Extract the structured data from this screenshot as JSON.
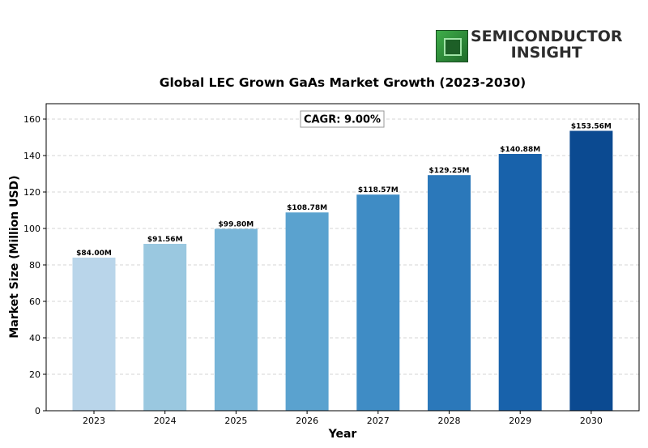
{
  "logo": {
    "line1": "SEMICONDUCTOR",
    "line2": "INSIGHT"
  },
  "chart_data": {
    "type": "bar",
    "title": "Global LEC Grown GaAs Market Growth (2023-2030)",
    "xlabel": "Year",
    "ylabel": "Market Size (Million USD)",
    "categories": [
      "2023",
      "2024",
      "2025",
      "2026",
      "2027",
      "2028",
      "2029",
      "2030"
    ],
    "values": [
      84.0,
      91.56,
      99.8,
      108.78,
      118.57,
      129.25,
      140.88,
      153.56
    ],
    "data_labels": [
      "$84.00M",
      "$91.56M",
      "$99.80M",
      "$108.78M",
      "$118.57M",
      "$129.25M",
      "$140.88M",
      "$153.56M"
    ],
    "bar_colors": [
      "#b9d5ea",
      "#9ac8e0",
      "#78b5d8",
      "#5aa2cf",
      "#3f8cc5",
      "#2b78ba",
      "#1862ab",
      "#0b4a91"
    ],
    "ylim": [
      0,
      168
    ],
    "yticks": [
      0,
      20,
      40,
      60,
      80,
      100,
      120,
      140,
      160
    ],
    "grid": "horizontal dashed",
    "annotation": "CAGR: 9.00%"
  }
}
